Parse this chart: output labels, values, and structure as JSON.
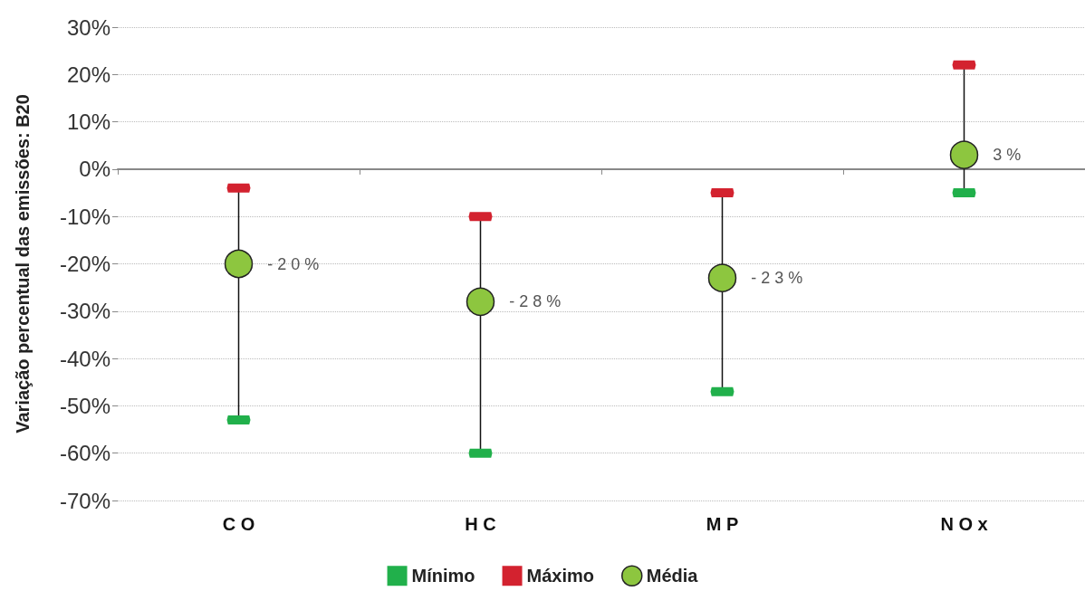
{
  "chart_data": {
    "type": "scatter",
    "ylabel": "Variação percentual das emissões: B20",
    "categories": [
      "C O",
      "H C",
      "M P",
      "N O x"
    ],
    "ylim": [
      -70,
      30
    ],
    "yticks": [
      {
        "value": -70,
        "label": "-70%"
      },
      {
        "value": -60,
        "label": "-60%"
      },
      {
        "value": -50,
        "label": "-50%"
      },
      {
        "value": -40,
        "label": "-40%"
      },
      {
        "value": -30,
        "label": "-30%"
      },
      {
        "value": -20,
        "label": "-20%"
      },
      {
        "value": -10,
        "label": "-10%"
      },
      {
        "value": 0,
        "label": "0%"
      },
      {
        "value": 10,
        "label": "10%"
      },
      {
        "value": 20,
        "label": "20%"
      },
      {
        "value": 30,
        "label": "30%"
      }
    ],
    "grid": "y",
    "legend": "bottom",
    "series": [
      {
        "name": "Mínimo",
        "color": "#21b04b",
        "values": [
          -53,
          -60,
          -47,
          -5
        ]
      },
      {
        "name": "Máximo",
        "color": "#d3222f",
        "values": [
          -4,
          -10,
          -5,
          22
        ]
      },
      {
        "name": "Média",
        "color": "#8dc63f",
        "marker": "circle",
        "values": [
          -20,
          -28,
          -23,
          3
        ],
        "value_labels": [
          "- 2 0 %",
          "- 2 8 %",
          "- 2 3 %",
          "3 %"
        ]
      }
    ]
  }
}
